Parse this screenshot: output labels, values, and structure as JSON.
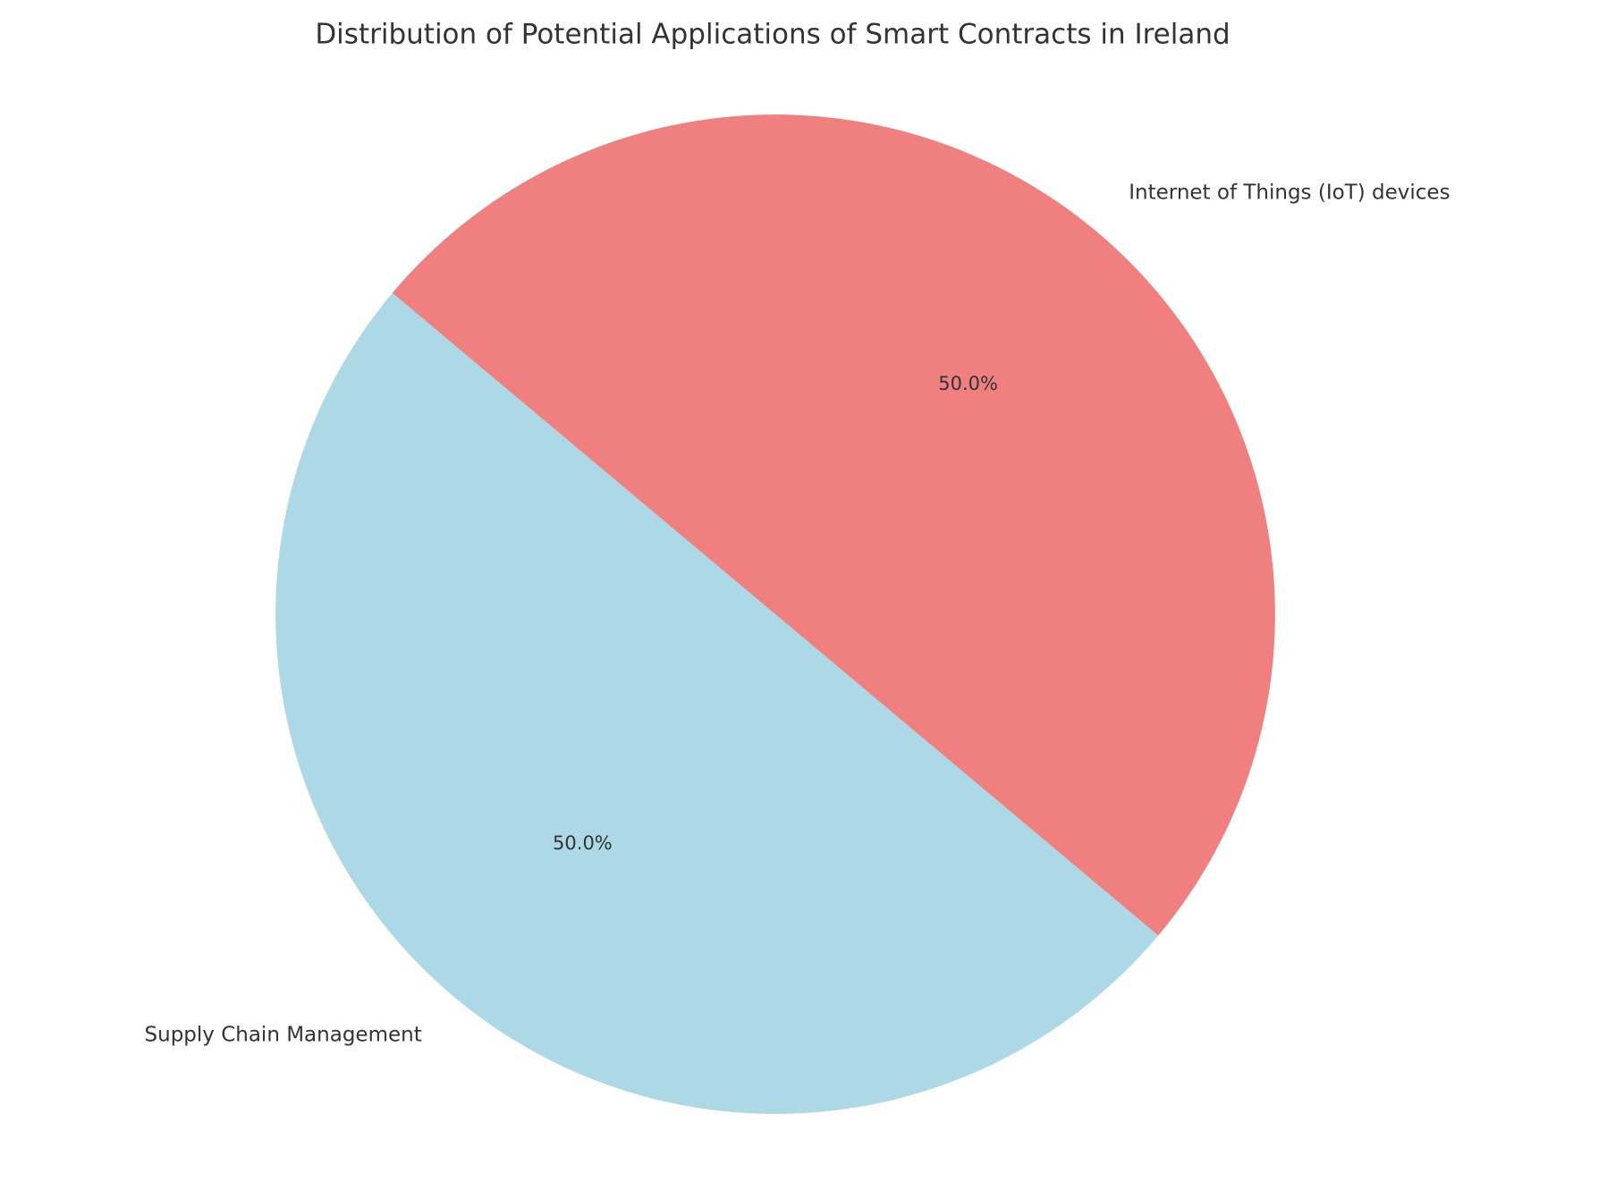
{
  "chart_data": {
    "type": "pie",
    "title": "Distribution of Potential Applications of Smart Contracts in Ireland",
    "categories": [
      "Supply Chain Management",
      "Internet of Things (IoT) devices"
    ],
    "values": [
      50,
      50
    ],
    "value_labels": [
      "50.0%",
      "50.0%"
    ],
    "colors": [
      "#add8e6",
      "#f08080"
    ],
    "start_angle": 140
  }
}
